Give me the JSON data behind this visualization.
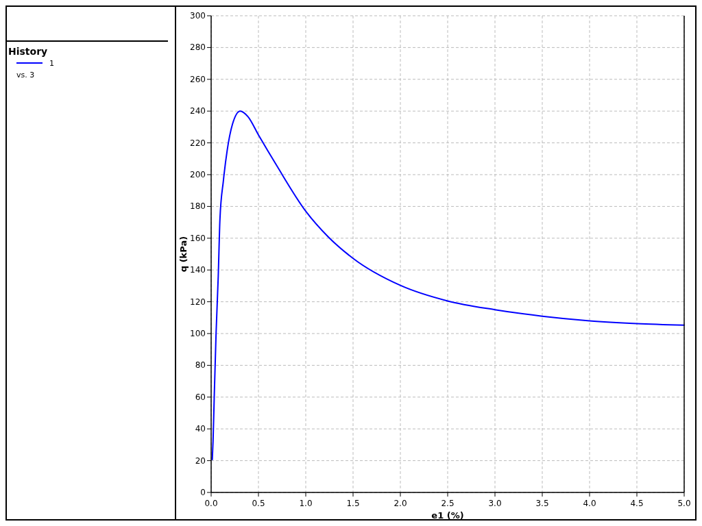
{
  "chart_data": {
    "type": "line",
    "xlabel": "e1 (%)",
    "ylabel": "q (kPa)",
    "legend_title": "History",
    "legend": "left",
    "grid": true,
    "line_style": "solid",
    "marker": "none",
    "xlim": [
      0,
      5
    ],
    "xticks": [
      {
        "value": 0,
        "label": "0.0"
      },
      {
        "value": 0.5,
        "label": "0.5"
      },
      {
        "value": 1,
        "label": "1.0"
      },
      {
        "value": 1.5,
        "label": "1.5"
      },
      {
        "value": 2,
        "label": "2.0"
      },
      {
        "value": 2.5,
        "label": "2.5"
      },
      {
        "value": 3,
        "label": "3.0"
      },
      {
        "value": 3.5,
        "label": "3.5"
      },
      {
        "value": 4,
        "label": "4.0"
      },
      {
        "value": 4.5,
        "label": "4.5"
      },
      {
        "value": 5,
        "label": "5.0"
      }
    ],
    "ylim": [
      0,
      300
    ],
    "yticks": [
      0,
      20,
      40,
      60,
      80,
      100,
      120,
      140,
      160,
      180,
      200,
      220,
      240,
      260,
      280,
      300
    ],
    "annotations": [
      "vs. 3"
    ],
    "series": [
      {
        "name": "1",
        "color": "#0000ff",
        "x": [
          0.012,
          0.02,
          0.033,
          0.052,
          0.075,
          0.093,
          0.129,
          0.17,
          0.225,
          0.307,
          0.388,
          0.5,
          0.69,
          1.0,
          1.235,
          1.5,
          2.0,
          2.5,
          3.0,
          3.5,
          4.0,
          4.5,
          5.0
        ],
        "values": [
          20.7,
          32,
          61,
          100,
          136,
          172,
          196,
          215.5,
          231.7,
          240,
          236.6,
          225,
          206,
          177,
          161,
          147.3,
          130.3,
          120.5,
          115,
          110.9,
          108,
          106.3,
          105.3
        ]
      }
    ]
  }
}
